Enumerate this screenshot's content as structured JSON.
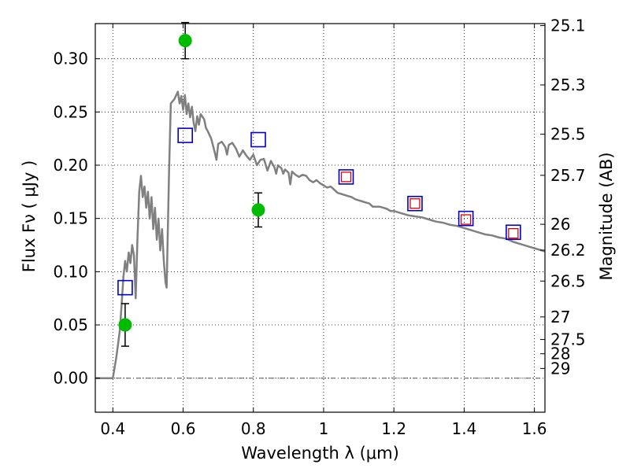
{
  "chart_data": {
    "type": "scatter",
    "title": "",
    "xlabel": "Wavelength  λ (μm)",
    "ylabel": "Flux  Fν  ( μJy )",
    "ylabel_right": "Magnitude (AB)",
    "xlim": [
      0.35,
      1.63
    ],
    "ylim": [
      -0.032,
      0.333
    ],
    "grid": true,
    "legend": "none",
    "x_ticks": [
      {
        "value": 0.4,
        "label": "0.4"
      },
      {
        "value": 0.6,
        "label": "0.6"
      },
      {
        "value": 0.8,
        "label": "0.8"
      },
      {
        "value": 1.0,
        "label": "1"
      },
      {
        "value": 1.2,
        "label": "1.2"
      },
      {
        "value": 1.4,
        "label": "1.4"
      },
      {
        "value": 1.6,
        "label": "1.6"
      }
    ],
    "y_ticks": [
      {
        "value": 0.0,
        "label": "0.00"
      },
      {
        "value": 0.05,
        "label": "0.05"
      },
      {
        "value": 0.1,
        "label": "0.10"
      },
      {
        "value": 0.15,
        "label": "0.15"
      },
      {
        "value": 0.2,
        "label": "0.20"
      },
      {
        "value": 0.25,
        "label": "0.25"
      },
      {
        "value": 0.3,
        "label": "0.30"
      }
    ],
    "right_ticks": [
      {
        "label": "25.1",
        "flux": 0.3311
      },
      {
        "label": "25.3",
        "flux": 0.2754
      },
      {
        "label": "25.5",
        "flux": 0.2291
      },
      {
        "label": "25.7",
        "flux": 0.1905
      },
      {
        "label": "26",
        "flux": 0.1445
      },
      {
        "label": "26.2",
        "flux": 0.1202
      },
      {
        "label": "26.5",
        "flux": 0.0912
      },
      {
        "label": "27",
        "flux": 0.0575
      },
      {
        "label": "27.5",
        "flux": 0.0363
      },
      {
        "label": "28",
        "flux": 0.0229
      },
      {
        "label": "29",
        "flux": 0.0091
      }
    ],
    "series": [
      {
        "type": "line",
        "color": "#808080",
        "points": [
          [
            0.35,
            0.0
          ],
          [
            0.39,
            0.0
          ],
          [
            0.4,
            0.0
          ],
          [
            0.41,
            0.02
          ],
          [
            0.42,
            0.045
          ],
          [
            0.425,
            0.07
          ],
          [
            0.43,
            0.095
          ],
          [
            0.435,
            0.11
          ],
          [
            0.44,
            0.1
          ],
          [
            0.445,
            0.118
          ],
          [
            0.45,
            0.108
          ],
          [
            0.455,
            0.125
          ],
          [
            0.46,
            0.115
          ],
          [
            0.465,
            0.075
          ],
          [
            0.47,
            0.13
          ],
          [
            0.475,
            0.175
          ],
          [
            0.48,
            0.19
          ],
          [
            0.485,
            0.17
          ],
          [
            0.49,
            0.18
          ],
          [
            0.495,
            0.16
          ],
          [
            0.5,
            0.175
          ],
          [
            0.505,
            0.15
          ],
          [
            0.51,
            0.17
          ],
          [
            0.515,
            0.14
          ],
          [
            0.52,
            0.16
          ],
          [
            0.525,
            0.13
          ],
          [
            0.53,
            0.15
          ],
          [
            0.535,
            0.12
          ],
          [
            0.54,
            0.14
          ],
          [
            0.545,
            0.11
          ],
          [
            0.55,
            0.09
          ],
          [
            0.553,
            0.085
          ],
          [
            0.56,
            0.195
          ],
          [
            0.565,
            0.258
          ],
          [
            0.575,
            0.262
          ],
          [
            0.585,
            0.269
          ],
          [
            0.59,
            0.258
          ],
          [
            0.595,
            0.265
          ],
          [
            0.6,
            0.252
          ],
          [
            0.605,
            0.266
          ],
          [
            0.61,
            0.248
          ],
          [
            0.615,
            0.258
          ],
          [
            0.62,
            0.245
          ],
          [
            0.625,
            0.255
          ],
          [
            0.63,
            0.24
          ],
          [
            0.635,
            0.232
          ],
          [
            0.64,
            0.246
          ],
          [
            0.645,
            0.238
          ],
          [
            0.65,
            0.248
          ],
          [
            0.66,
            0.243
          ],
          [
            0.665,
            0.235
          ],
          [
            0.67,
            0.232
          ],
          [
            0.68,
            0.225
          ],
          [
            0.69,
            0.212
          ],
          [
            0.695,
            0.205
          ],
          [
            0.7,
            0.22
          ],
          [
            0.71,
            0.222
          ],
          [
            0.72,
            0.217
          ],
          [
            0.725,
            0.21
          ],
          [
            0.73,
            0.219
          ],
          [
            0.74,
            0.221
          ],
          [
            0.75,
            0.216
          ],
          [
            0.76,
            0.208
          ],
          [
            0.77,
            0.214
          ],
          [
            0.78,
            0.209
          ],
          [
            0.79,
            0.205
          ],
          [
            0.8,
            0.21
          ],
          [
            0.81,
            0.2
          ],
          [
            0.82,
            0.205
          ],
          [
            0.83,
            0.206
          ],
          [
            0.84,
            0.195
          ],
          [
            0.85,
            0.204
          ],
          [
            0.86,
            0.198
          ],
          [
            0.865,
            0.192
          ],
          [
            0.87,
            0.2
          ],
          [
            0.88,
            0.197
          ],
          [
            0.885,
            0.192
          ],
          [
            0.89,
            0.196
          ],
          [
            0.9,
            0.193
          ],
          [
            0.905,
            0.182
          ],
          [
            0.91,
            0.194
          ],
          [
            0.92,
            0.191
          ],
          [
            0.93,
            0.189
          ],
          [
            0.94,
            0.191
          ],
          [
            0.95,
            0.19
          ],
          [
            0.96,
            0.186
          ],
          [
            0.97,
            0.184
          ],
          [
            0.98,
            0.186
          ],
          [
            0.99,
            0.183
          ],
          [
            1.0,
            0.181
          ],
          [
            1.01,
            0.179
          ],
          [
            1.02,
            0.18
          ],
          [
            1.03,
            0.177
          ],
          [
            1.04,
            0.174
          ],
          [
            1.05,
            0.173
          ],
          [
            1.06,
            0.172
          ],
          [
            1.07,
            0.171
          ],
          [
            1.08,
            0.17
          ],
          [
            1.09,
            0.168
          ],
          [
            1.1,
            0.167
          ],
          [
            1.11,
            0.166
          ],
          [
            1.12,
            0.165
          ],
          [
            1.13,
            0.164
          ],
          [
            1.14,
            0.161
          ],
          [
            1.15,
            0.161
          ],
          [
            1.16,
            0.161
          ],
          [
            1.17,
            0.16
          ],
          [
            1.18,
            0.159
          ],
          [
            1.19,
            0.157
          ],
          [
            1.2,
            0.157
          ],
          [
            1.22,
            0.155
          ],
          [
            1.24,
            0.153
          ],
          [
            1.26,
            0.152
          ],
          [
            1.28,
            0.151
          ],
          [
            1.3,
            0.149
          ],
          [
            1.32,
            0.147
          ],
          [
            1.34,
            0.146
          ],
          [
            1.36,
            0.144
          ],
          [
            1.38,
            0.143
          ],
          [
            1.4,
            0.141
          ],
          [
            1.42,
            0.139
          ],
          [
            1.44,
            0.137
          ],
          [
            1.46,
            0.135
          ],
          [
            1.48,
            0.134
          ],
          [
            1.5,
            0.132
          ],
          [
            1.52,
            0.131
          ],
          [
            1.54,
            0.128
          ],
          [
            1.56,
            0.126
          ],
          [
            1.58,
            0.124
          ],
          [
            1.6,
            0.122
          ],
          [
            1.63,
            0.119
          ]
        ]
      },
      {
        "type": "points",
        "marker": "circle",
        "color": "#00bb00",
        "points": [
          {
            "x": 0.435,
            "y": 0.05,
            "err": 0.02
          },
          {
            "x": 0.606,
            "y": 0.317,
            "err": 0.017
          },
          {
            "x": 0.814,
            "y": 0.158,
            "err": 0.016
          }
        ]
      },
      {
        "type": "points",
        "marker": "square",
        "color": "#0000cc",
        "points": [
          {
            "x": 0.435,
            "y": 0.085
          },
          {
            "x": 0.606,
            "y": 0.228
          },
          {
            "x": 0.814,
            "y": 0.224
          },
          {
            "x": 1.064,
            "y": 0.189
          },
          {
            "x": 1.26,
            "y": 0.164
          },
          {
            "x": 1.405,
            "y": 0.15
          },
          {
            "x": 1.54,
            "y": 0.137
          }
        ]
      },
      {
        "type": "points",
        "marker": "small-square",
        "color": "#dd0000",
        "points": [
          {
            "x": 1.064,
            "y": 0.189
          },
          {
            "x": 1.26,
            "y": 0.164
          },
          {
            "x": 1.405,
            "y": 0.149
          },
          {
            "x": 1.54,
            "y": 0.136
          }
        ]
      }
    ]
  }
}
